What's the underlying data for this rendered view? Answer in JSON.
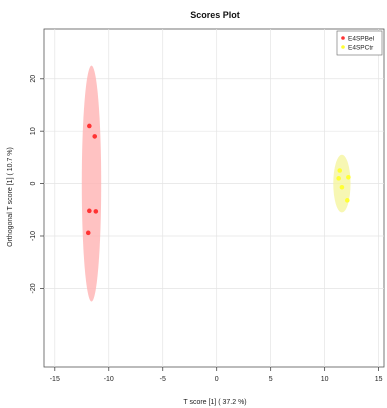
{
  "chart_data": {
    "type": "scatter",
    "title": "Scores Plot",
    "xlabel": "T score [1] ( 37.2 %)",
    "ylabel": "Orthogonal T score [1] ( 10.7 %)",
    "xlim": [
      -16,
      15.5
    ],
    "ylim": [
      -35,
      29.5
    ],
    "xticks": [
      -15,
      -10,
      -5,
      0,
      5,
      10,
      15
    ],
    "yticks": [
      -20,
      -10,
      0,
      10,
      20
    ],
    "grid": true,
    "legend_position": "top-right",
    "series": [
      {
        "name": "E4SPBel",
        "color": "#ff3333",
        "ellipse_color": "#ffb3b3",
        "points": [
          {
            "x": -11.8,
            "y": 11.0
          },
          {
            "x": -11.3,
            "y": 9.0
          },
          {
            "x": -11.8,
            "y": -5.2
          },
          {
            "x": -11.2,
            "y": -5.3
          },
          {
            "x": -11.9,
            "y": -9.4
          }
        ],
        "ellipse": {
          "cx": -11.6,
          "cy": 0.0,
          "rx": 0.9,
          "ry": 22.5
        }
      },
      {
        "name": "E4SPCtr",
        "color": "#ffff33",
        "ellipse_color": "#f5f5a0",
        "points": [
          {
            "x": 11.4,
            "y": 2.5
          },
          {
            "x": 11.3,
            "y": 1.0
          },
          {
            "x": 11.6,
            "y": -0.7
          },
          {
            "x": 12.1,
            "y": -3.2
          },
          {
            "x": 12.2,
            "y": 1.2
          }
        ],
        "ellipse": {
          "cx": 11.6,
          "cy": 0.0,
          "rx": 0.8,
          "ry": 5.5
        }
      }
    ]
  }
}
